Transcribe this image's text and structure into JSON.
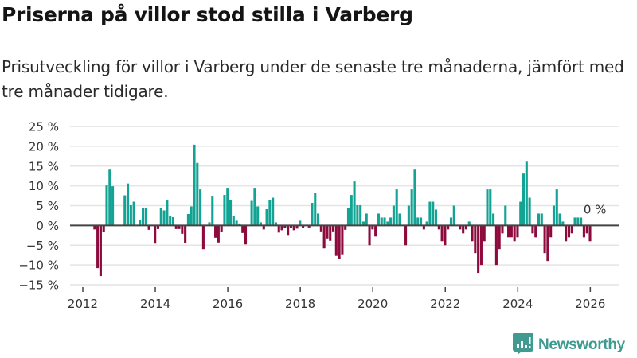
{
  "title": "Priserna på villor stod stilla i Varberg",
  "subtitle": "Prisutveckling för villor i Varberg under de senaste tre månaderna, jämfört med tre månader tidigare.",
  "brand": {
    "name": "Newsworthy",
    "color": "#3f9a90",
    "icon": "newsworthy-logo-icon"
  },
  "colors": {
    "positive": "#13a394",
    "negative": "#8c0a3c",
    "grid": "#e4e4e4",
    "zero_line": "#444444"
  },
  "chart_data": {
    "type": "bar",
    "title": "Priserna på villor stod stilla i Varberg",
    "xlabel": "",
    "ylabel": "",
    "unit": "%",
    "x_start": "2012-05",
    "x_frequency": "monthly",
    "ylim": [
      -15,
      25
    ],
    "yticks": [
      25,
      20,
      15,
      10,
      5,
      0,
      -5,
      -10,
      -15
    ],
    "ytick_labels": [
      "25 %",
      "20 %",
      "15 %",
      "10 %",
      "5 %",
      "0 %",
      "−5 %",
      "−10 %",
      "−15 %"
    ],
    "xticks": [
      2012,
      2014,
      2016,
      2018,
      2020,
      2022,
      2024,
      2026
    ],
    "xtick_labels": [
      "2012",
      "2014",
      "2016",
      "2018",
      "2020",
      "2022",
      "2024",
      "2026"
    ],
    "xlim": [
      "2011-10",
      "2026-12"
    ],
    "grid": true,
    "legend": "none",
    "last_value_annotation": "0 %",
    "values": [
      -1.0,
      -10.8,
      -12.8,
      -1.7,
      10.1,
      14.1,
      9.9,
      0,
      0,
      0,
      7.6,
      10.6,
      5.1,
      6.0,
      0,
      1.4,
      4.3,
      4.3,
      -1.1,
      0,
      -4.6,
      -0.9,
      4.3,
      3.8,
      6.3,
      2.3,
      2.1,
      -0.9,
      -0.9,
      -2.1,
      -4.4,
      2.9,
      4.8,
      20.4,
      15.8,
      9.1,
      -6.0,
      0,
      0.8,
      7.5,
      -3.1,
      -4.3,
      -1.7,
      7.7,
      9.5,
      6.4,
      2.4,
      1.2,
      0.5,
      -1.9,
      -4.8,
      0,
      6.2,
      9.5,
      4.8,
      0.8,
      -1.0,
      4.1,
      6.5,
      7.0,
      0.8,
      -1.8,
      -1.2,
      -0.7,
      -2.6,
      -0.7,
      -1.2,
      -0.8,
      1.2,
      -0.7,
      0,
      -0.5,
      5.7,
      8.3,
      3.0,
      -1.5,
      -5.8,
      -3.3,
      -3.9,
      -1.5,
      -7.7,
      -8.5,
      -7.3,
      -1.1,
      4.5,
      7.7,
      11.1,
      5.1,
      5.1,
      1.0,
      3.0,
      -5.0,
      -1.0,
      -2.8,
      3.0,
      2.0,
      2.0,
      1.0,
      2.0,
      5.0,
      9.1,
      3.0,
      0,
      -5.0,
      5.0,
      9.1,
      14.1,
      2.0,
      2.0,
      -1.0,
      1.0,
      6.0,
      6.0,
      4.0,
      -1.0,
      -4.0,
      -5.0,
      -1.0,
      2.0,
      5.0,
      0,
      -1.0,
      -2.0,
      -1.0,
      1.0,
      -4.0,
      -7.0,
      -12.0,
      -10.0,
      -4.0,
      9.1,
      9.1,
      3.0,
      -10.0,
      -6.0,
      -2.0,
      5.0,
      -3.0,
      -3.0,
      -4.0,
      -3.0,
      6.0,
      13.1,
      16.1,
      7.0,
      -2.0,
      -3.0,
      3.0,
      3.0,
      -7.0,
      -9.0,
      -3.0,
      5.0,
      9.1,
      3.0,
      1.0,
      -4.0,
      -3.0,
      -2.0,
      2.0,
      2.0,
      2.0,
      -3.0,
      -2.0,
      -4.0,
      0
    ]
  }
}
